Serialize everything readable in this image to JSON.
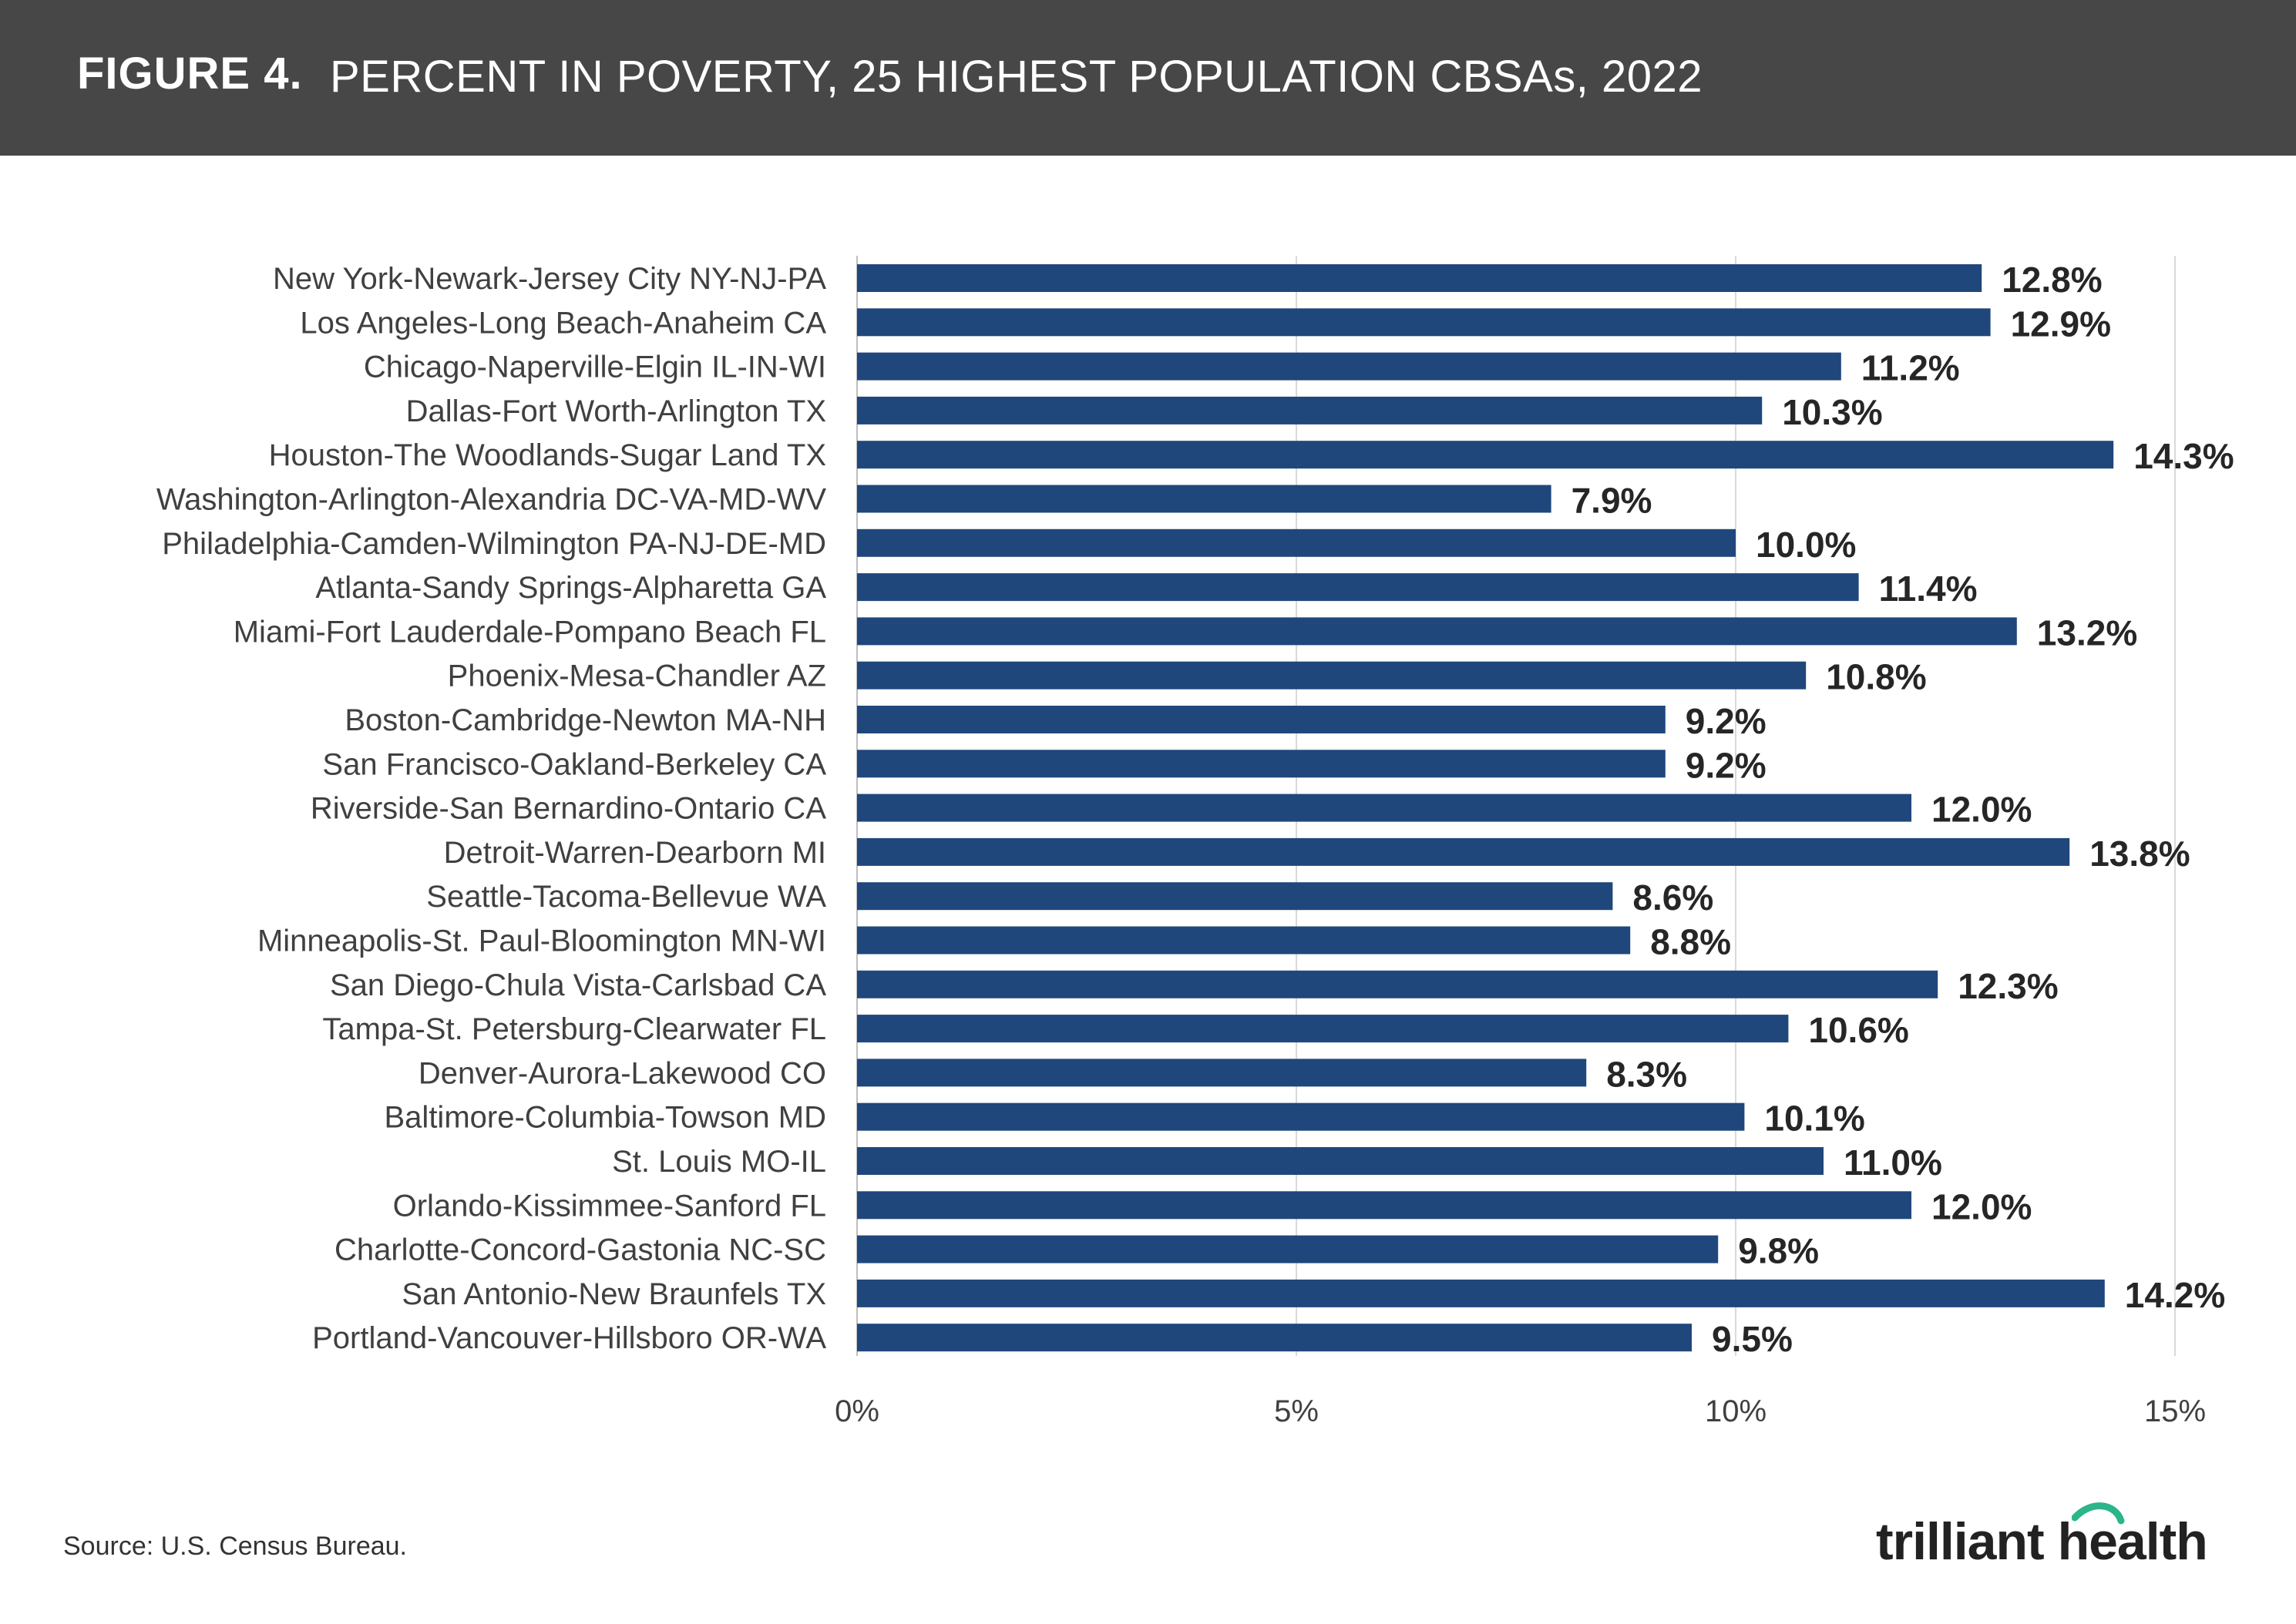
{
  "header": {
    "figure_number": "FIGURE 4.",
    "title": "PERCENT IN POVERTY, 25 HIGHEST POPULATION CBSAs, 2022"
  },
  "chart_data": {
    "type": "bar",
    "orientation": "horizontal",
    "title": "PERCENT IN POVERTY, 25 HIGHEST POPULATION CBSAs, 2022",
    "xlabel": "",
    "ylabel": "",
    "xlim": [
      0,
      15
    ],
    "x_ticks": [
      0,
      5,
      10,
      15
    ],
    "x_tick_labels": [
      "0%",
      "5%",
      "10%",
      "15%"
    ],
    "grid": true,
    "bar_color": "#1f477b",
    "categories": [
      "New York-Newark-Jersey City NY-NJ-PA",
      "Los Angeles-Long Beach-Anaheim CA",
      "Chicago-Naperville-Elgin IL-IN-WI",
      "Dallas-Fort Worth-Arlington TX",
      "Houston-The Woodlands-Sugar Land TX",
      "Washington-Arlington-Alexandria DC-VA-MD-WV",
      "Philadelphia-Camden-Wilmington PA-NJ-DE-MD",
      "Atlanta-Sandy Springs-Alpharetta GA",
      "Miami-Fort Lauderdale-Pompano Beach FL",
      "Phoenix-Mesa-Chandler AZ",
      "Boston-Cambridge-Newton MA-NH",
      "San Francisco-Oakland-Berkeley CA",
      "Riverside-San Bernardino-Ontario CA",
      "Detroit-Warren-Dearborn MI",
      "Seattle-Tacoma-Bellevue WA",
      "Minneapolis-St. Paul-Bloomington MN-WI",
      "San Diego-Chula Vista-Carlsbad CA",
      "Tampa-St. Petersburg-Clearwater FL",
      "Denver-Aurora-Lakewood CO",
      "Baltimore-Columbia-Towson MD",
      "St. Louis MO-IL",
      "Orlando-Kissimmee-Sanford FL",
      "Charlotte-Concord-Gastonia NC-SC",
      "San Antonio-New Braunfels TX",
      "Portland-Vancouver-Hillsboro OR-WA"
    ],
    "values": [
      12.8,
      12.9,
      11.2,
      10.3,
      14.3,
      7.9,
      10.0,
      11.4,
      13.2,
      10.8,
      9.2,
      9.2,
      12.0,
      13.8,
      8.6,
      8.8,
      12.3,
      10.6,
      8.3,
      10.1,
      11.0,
      12.0,
      9.8,
      14.2,
      9.5
    ],
    "value_labels": [
      "12.8%",
      "12.9%",
      "11.2%",
      "10.3%",
      "14.3%",
      "7.9%",
      "10.0%",
      "11.4%",
      "13.2%",
      "10.8%",
      "9.2%",
      "9.2%",
      "12.0%",
      "13.8%",
      "8.6%",
      "8.8%",
      "12.3%",
      "10.6%",
      "8.3%",
      "10.1%",
      "11.0%",
      "12.0%",
      "9.8%",
      "14.2%",
      "9.5%"
    ]
  },
  "footer": {
    "source": "Source: U.S. Census Bureau.",
    "logo_text": "trilliant health",
    "accent_color": "#2bb58a"
  }
}
